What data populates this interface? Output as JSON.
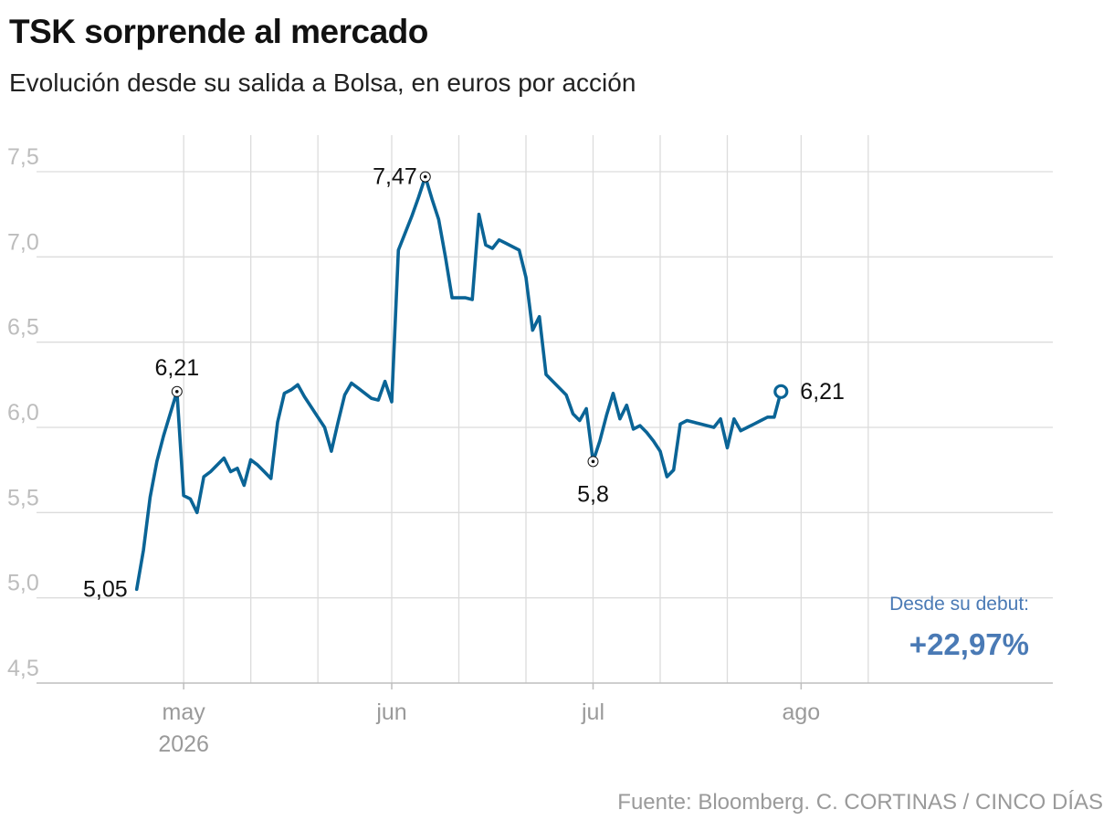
{
  "title": "TSK sorprende al mercado",
  "subtitle": "Evolución desde su salida a Bolsa, en euros por acción",
  "source": "Fuente: Bloomberg. C. CORTINAS / CINCO DÍAS",
  "colors": {
    "line": "#0a6496",
    "annotation": "#4a7ab5",
    "grid": "#dcdcdc",
    "ytick": "#bdbdbd",
    "xtick": "#9a9a9a"
  },
  "chart_data": {
    "type": "line",
    "title": "TSK sorprende al mercado",
    "subtitle": "Evolución desde su salida a Bolsa, en euros por acción",
    "xlabel": "",
    "ylabel": "",
    "ylim": [
      4.5,
      7.5
    ],
    "xlim": [
      "2026-04-22",
      "2026-08-13"
    ],
    "yticks": [
      4.5,
      5.0,
      5.5,
      6.0,
      6.5,
      7.0,
      7.5
    ],
    "ytick_labels": [
      "4,5",
      "5,0",
      "5,5",
      "6,0",
      "6,5",
      "7,0",
      "7,5"
    ],
    "xtick_labels": [
      {
        "label": "may",
        "sub": "2026",
        "date": "2026-05-01"
      },
      {
        "label": "jun",
        "date": "2026-06-01"
      },
      {
        "label": "jul",
        "date": "2026-07-01"
      },
      {
        "label": "ago",
        "date": "2026-08-01"
      }
    ],
    "grid_dates": [
      "2026-05-01",
      "2026-05-11",
      "2026-05-21",
      "2026-06-01",
      "2026-06-11",
      "2026-06-21",
      "2026-07-01",
      "2026-07-11",
      "2026-07-21",
      "2026-08-01",
      "2026-08-11"
    ],
    "grid": true,
    "series": [
      {
        "values": [
          [
            "2026-04-24",
            5.05
          ],
          [
            "2026-04-25",
            5.28
          ],
          [
            "2026-04-26",
            5.59
          ],
          [
            "2026-04-27",
            5.8
          ],
          [
            "2026-04-28",
            5.95
          ],
          [
            "2026-04-29",
            6.08
          ],
          [
            "2026-04-30",
            6.21
          ],
          [
            "2026-05-01",
            5.6
          ],
          [
            "2026-05-02",
            5.58
          ],
          [
            "2026-05-03",
            5.5
          ],
          [
            "2026-05-04",
            5.71
          ],
          [
            "2026-05-05",
            5.74
          ],
          [
            "2026-05-06",
            5.78
          ],
          [
            "2026-05-07",
            5.82
          ],
          [
            "2026-05-08",
            5.74
          ],
          [
            "2026-05-09",
            5.76
          ],
          [
            "2026-05-10",
            5.66
          ],
          [
            "2026-05-11",
            5.81
          ],
          [
            "2026-05-12",
            5.78
          ],
          [
            "2026-05-13",
            5.74
          ],
          [
            "2026-05-14",
            5.7
          ],
          [
            "2026-05-15",
            6.03
          ],
          [
            "2026-05-16",
            6.2
          ],
          [
            "2026-05-17",
            6.22
          ],
          [
            "2026-05-18",
            6.25
          ],
          [
            "2026-05-19",
            6.18
          ],
          [
            "2026-05-20",
            6.12
          ],
          [
            "2026-05-21",
            6.06
          ],
          [
            "2026-05-22",
            6.0
          ],
          [
            "2026-05-23",
            5.86
          ],
          [
            "2026-05-24",
            6.03
          ],
          [
            "2026-05-25",
            6.19
          ],
          [
            "2026-05-26",
            6.26
          ],
          [
            "2026-05-27",
            6.23
          ],
          [
            "2026-05-28",
            6.2
          ],
          [
            "2026-05-29",
            6.17
          ],
          [
            "2026-05-30",
            6.16
          ],
          [
            "2026-05-31",
            6.27
          ],
          [
            "2026-06-01",
            6.15
          ],
          [
            "2026-06-02",
            7.04
          ],
          [
            "2026-06-03",
            7.14
          ],
          [
            "2026-06-04",
            7.24
          ],
          [
            "2026-06-05",
            7.35
          ],
          [
            "2026-06-06",
            7.47
          ],
          [
            "2026-06-07",
            7.34
          ],
          [
            "2026-06-08",
            7.22
          ],
          [
            "2026-06-09",
            7.0
          ],
          [
            "2026-06-10",
            6.76
          ],
          [
            "2026-06-11",
            6.76
          ],
          [
            "2026-06-12",
            6.76
          ],
          [
            "2026-06-13",
            6.75
          ],
          [
            "2026-06-14",
            7.25
          ],
          [
            "2026-06-15",
            7.07
          ],
          [
            "2026-06-16",
            7.05
          ],
          [
            "2026-06-17",
            7.1
          ],
          [
            "2026-06-18",
            7.08
          ],
          [
            "2026-06-19",
            7.06
          ],
          [
            "2026-06-20",
            7.04
          ],
          [
            "2026-06-21",
            6.88
          ],
          [
            "2026-06-22",
            6.57
          ],
          [
            "2026-06-23",
            6.65
          ],
          [
            "2026-06-24",
            6.31
          ],
          [
            "2026-06-25",
            6.27
          ],
          [
            "2026-06-26",
            6.23
          ],
          [
            "2026-06-27",
            6.19
          ],
          [
            "2026-06-28",
            6.08
          ],
          [
            "2026-06-29",
            6.04
          ],
          [
            "2026-06-30",
            6.11
          ],
          [
            "2026-07-01",
            5.8
          ],
          [
            "2026-07-02",
            5.92
          ],
          [
            "2026-07-03",
            6.07
          ],
          [
            "2026-07-04",
            6.2
          ],
          [
            "2026-07-05",
            6.05
          ],
          [
            "2026-07-06",
            6.13
          ],
          [
            "2026-07-07",
            5.99
          ],
          [
            "2026-07-08",
            6.01
          ],
          [
            "2026-07-09",
            5.97
          ],
          [
            "2026-07-10",
            5.92
          ],
          [
            "2026-07-11",
            5.86
          ],
          [
            "2026-07-12",
            5.71
          ],
          [
            "2026-07-13",
            5.75
          ],
          [
            "2026-07-14",
            6.02
          ],
          [
            "2026-07-15",
            6.04
          ],
          [
            "2026-07-16",
            6.03
          ],
          [
            "2026-07-17",
            6.02
          ],
          [
            "2026-07-18",
            6.01
          ],
          [
            "2026-07-19",
            6.0
          ],
          [
            "2026-07-20",
            6.05
          ],
          [
            "2026-07-21",
            5.88
          ],
          [
            "2026-07-22",
            6.05
          ],
          [
            "2026-07-23",
            5.98
          ],
          [
            "2026-07-24",
            6.0
          ],
          [
            "2026-07-25",
            6.02
          ],
          [
            "2026-07-26",
            6.04
          ],
          [
            "2026-07-27",
            6.06
          ],
          [
            "2026-07-28",
            6.06
          ],
          [
            "2026-07-29",
            6.21
          ]
        ]
      }
    ],
    "point_labels": [
      {
        "date": "2026-04-24",
        "value": 5.05,
        "label": "5,05",
        "marker": false
      },
      {
        "date": "2026-04-30",
        "value": 6.21,
        "label": "6,21",
        "marker": true
      },
      {
        "date": "2026-06-06",
        "value": 7.47,
        "label": "7,47",
        "marker": true
      },
      {
        "date": "2026-07-01",
        "value": 5.8,
        "label": "5,8",
        "marker": true
      },
      {
        "date": "2026-07-29",
        "value": 6.21,
        "label": "6,21",
        "marker": true
      }
    ],
    "annotation": {
      "heading": "Desde su debut:",
      "value": "+22,97%"
    }
  }
}
